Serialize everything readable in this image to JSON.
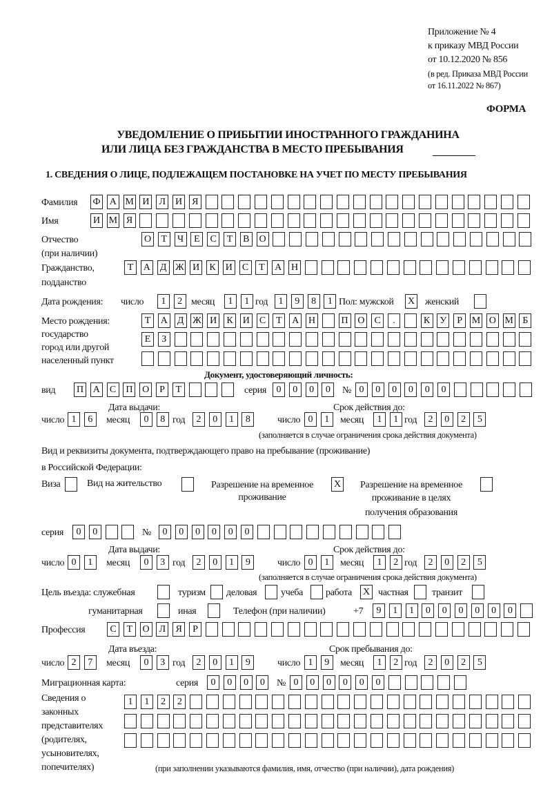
{
  "header": {
    "appendix": "Приложение № 4",
    "order": "к приказу МВД России",
    "order_date": "от 10.12.2020 № 856",
    "edition1": "(в ред. Приказа МВД России",
    "edition2": "от 16.11.2022 № 867)",
    "forma": "ФОРМА"
  },
  "title": {
    "line1": "УВЕДОМЛЕНИЕ О ПРИБЫТИИ ИНОСТРАННОГО ГРАЖДАНИНА",
    "line2": "ИЛИ ЛИЦА БЕЗ ГРАЖДАНСТВА В МЕСТО ПРЕБЫВАНИЯ"
  },
  "section1": "1. СВЕДЕНИЯ О ЛИЦЕ, ПОДЛЕЖАЩЕМ ПОСТАНОВКЕ НА УЧЕТ ПО МЕСТУ ПРЕБЫВАНИЯ",
  "labels": {
    "surname": "Фамилия",
    "name": "Имя",
    "patronymic": "Отчество",
    "patronymic2": "(при наличии)",
    "citizenship": "Гражданство,",
    "citizenship2": "подданство",
    "birth_date": "Дата рождения:",
    "day": "число",
    "month": "месяц",
    "year": "год",
    "sex": "Пол: мужской",
    "female": "женский",
    "birthplace": "Место рождения:",
    "birthplace2": "государство",
    "birthplace3": "город или другой",
    "birthplace4": "населенный пункт",
    "id_doc": "Документ, удостоверяющий личность:",
    "kind": "вид",
    "series": "серия",
    "number": "№",
    "issue_date": "Дата выдачи:",
    "valid_until": "Срок действия до:",
    "valid_note": "(заполняется в случае ограничения срока действия документа)",
    "right_doc1": "Вид и реквизиты документа, подтверждающего право на пребывание (проживание)",
    "right_doc2": "в Российской Федерации:",
    "visa": "Виза",
    "residence": "Вид на жительство",
    "trp1": "Разрешение на временное",
    "trp2": "проживание",
    "trpe1": "Разрешение на временное",
    "trpe2": "проживание в целях",
    "trpe3": "получения образования",
    "purpose": "Цель въезда: служебная",
    "tourism": "туризм",
    "business": "деловая",
    "study": "учеба",
    "work": "работа",
    "private": "частная",
    "transit": "транзит",
    "humanitarian": "гуманитарная",
    "other": "иная",
    "phone": "Телефон (при наличии)",
    "phone_prefix": "+7",
    "profession": "Профессия",
    "entry_date": "Дата въезда:",
    "stay_until": "Срок пребывания до:",
    "migration_card": "Миграционная карта:",
    "reps1": "Сведения о",
    "reps2": "законных",
    "reps3": "представителях",
    "reps4": "(родителях,",
    "reps5": "усыновителях,",
    "reps6": "попечителях)",
    "reps_note": "(при заполнении указываются фамилия, имя, отчество (при наличии), дата рождения)"
  },
  "values": {
    "surname": "ФАМИЛИЯ",
    "name": "ИМЯ",
    "patronymic": "ОТЧЕСТВО",
    "citizenship": "ТАДЖИКИСТАН",
    "birth_day": "12",
    "birth_month": "11",
    "birth_year": "1981",
    "sex_male": "X",
    "sex_female": "",
    "birthplace1": "ТАДЖИКИСТАН ПОС. КУРМОМБ",
    "birthplace2": "ЕЗ",
    "birthplace3": "",
    "doc_kind": "ПАСПОРТ",
    "doc_series": "0000",
    "doc_number": "000000",
    "doc_issue_day": "16",
    "doc_issue_month": "08",
    "doc_issue_year": "2018",
    "doc_valid_day": "01",
    "doc_valid_month": "11",
    "doc_valid_year": "2025",
    "visa": "",
    "residence": "",
    "trp": "X",
    "trpe": "",
    "right_series": "00",
    "right_number": "000000",
    "right_issue_day": "01",
    "right_issue_month": "03",
    "right_issue_year": "2019",
    "right_valid_day": "01",
    "right_valid_month": "12",
    "right_valid_year": "2025",
    "p_service": "",
    "p_tourism": "",
    "p_business": "",
    "p_study": "",
    "p_work": "X",
    "p_private": "",
    "p_transit": "",
    "p_humanitarian": "",
    "p_other": "",
    "phone": "911000000",
    "profession": "СТОЛЯР",
    "entry_day": "27",
    "entry_month": "03",
    "entry_year": "2019",
    "stay_day": "19",
    "stay_month": "12",
    "stay_year": "2025",
    "mc_series": "0000",
    "mc_number": "000000",
    "reps1": "1122",
    "reps2": "",
    "reps3": ""
  }
}
